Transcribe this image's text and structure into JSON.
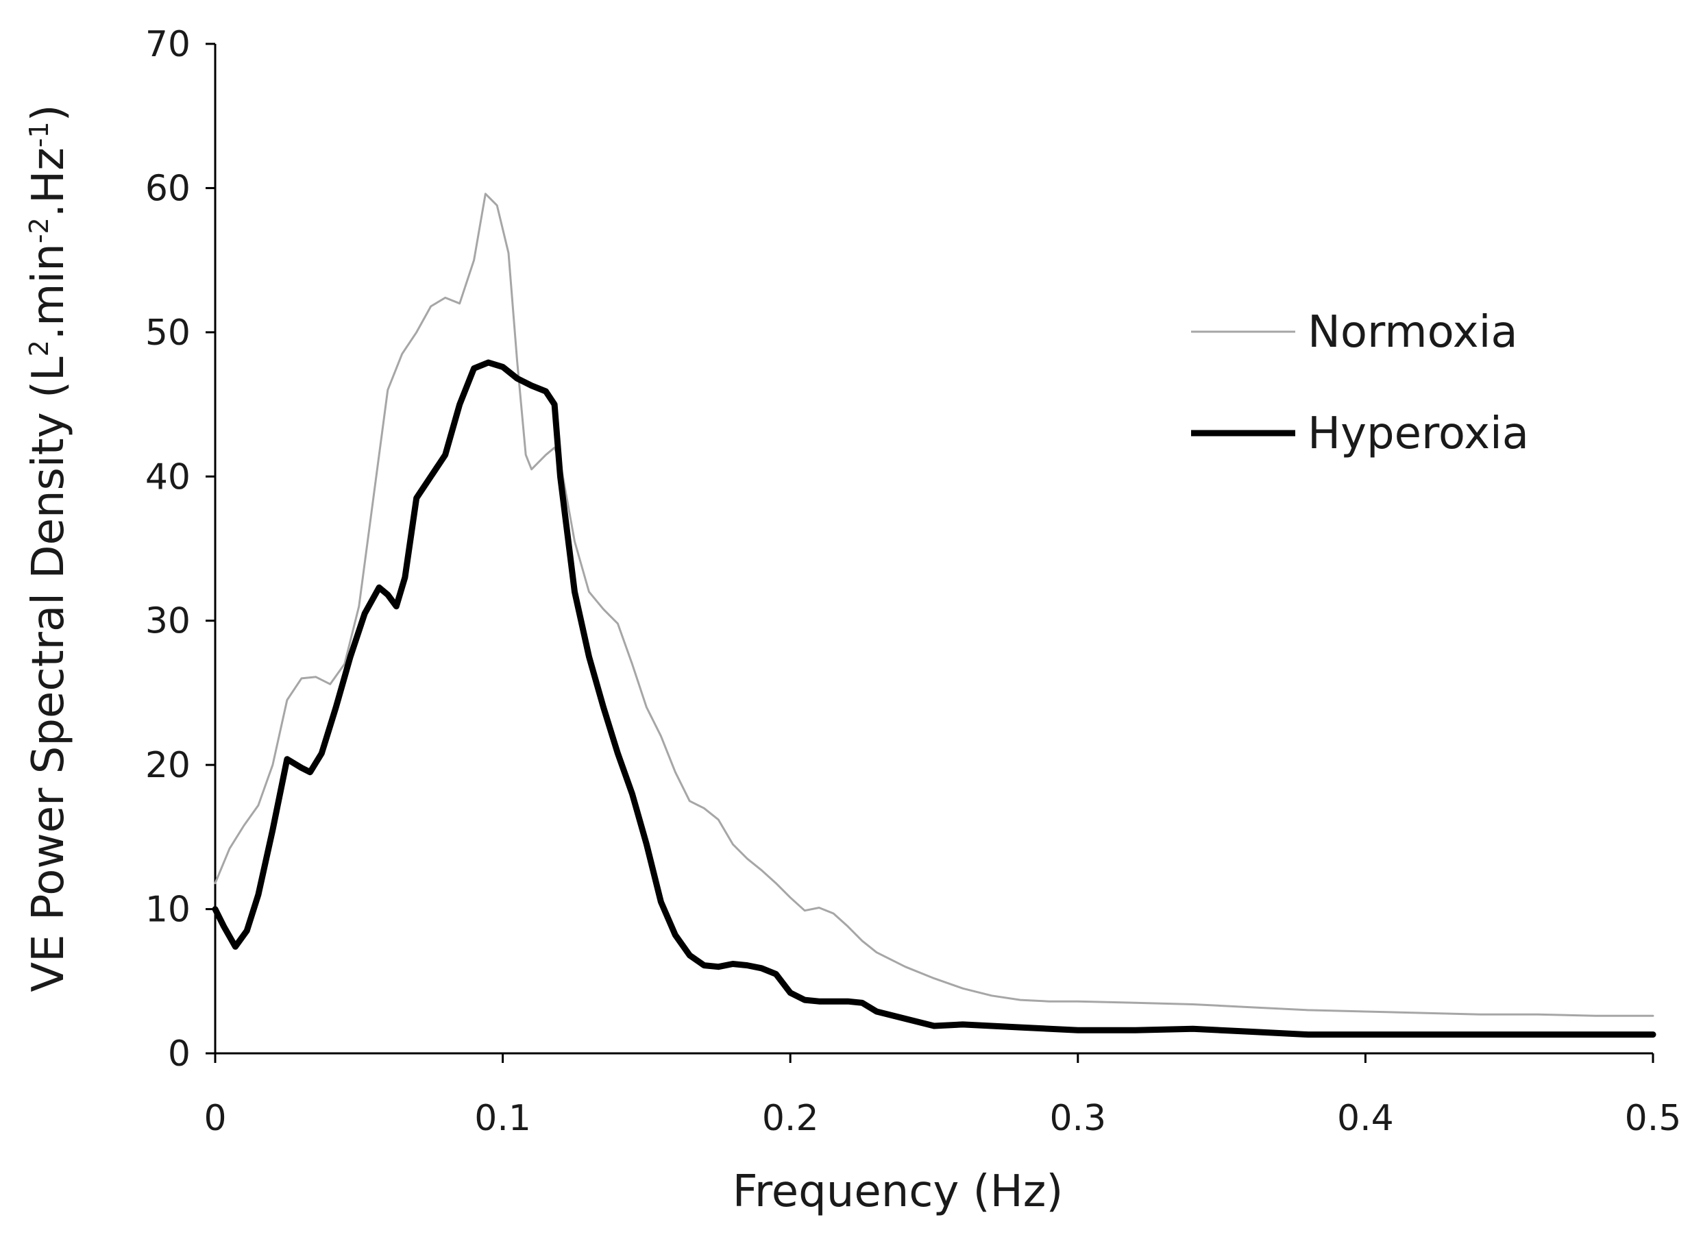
{
  "chart_data": {
    "type": "line",
    "xlabel": "Frequency (Hz)",
    "ylabel": {
      "text": "VE Power Spectral Density  (L",
      "sup1": "2",
      "mid1": ".min",
      "sup2": "-2",
      "mid2": ".Hz",
      "sup3": "-1",
      "end": ")"
    },
    "xlim": [
      0,
      0.5
    ],
    "ylim": [
      0,
      70
    ],
    "x_ticks": [
      0,
      0.1,
      0.2,
      0.3,
      0.4,
      0.5
    ],
    "x_tick_labels": [
      "0",
      "0.1",
      "0.2",
      "0.3",
      "0.4",
      "0.5"
    ],
    "y_ticks": [
      0,
      10,
      20,
      30,
      40,
      50,
      60,
      70
    ],
    "y_tick_labels": [
      "0",
      "10",
      "20",
      "30",
      "40",
      "50",
      "60",
      "70"
    ],
    "grid": false,
    "legend_position": "top-right",
    "series": [
      {
        "name": "Normoxia",
        "color": "#a6a6a6",
        "points": [
          [
            0,
            11.8
          ],
          [
            0.005,
            14.2
          ],
          [
            0.01,
            15.8
          ],
          [
            0.015,
            17.2
          ],
          [
            0.02,
            20.0
          ],
          [
            0.025,
            24.5
          ],
          [
            0.03,
            26.0
          ],
          [
            0.035,
            26.1
          ],
          [
            0.04,
            25.6
          ],
          [
            0.045,
            27.0
          ],
          [
            0.05,
            31.0
          ],
          [
            0.055,
            38.5
          ],
          [
            0.06,
            46.0
          ],
          [
            0.065,
            48.5
          ],
          [
            0.07,
            50.0
          ],
          [
            0.075,
            51.8
          ],
          [
            0.08,
            52.4
          ],
          [
            0.085,
            52.0
          ],
          [
            0.09,
            55.0
          ],
          [
            0.094,
            59.6
          ],
          [
            0.098,
            58.8
          ],
          [
            0.102,
            55.5
          ],
          [
            0.105,
            48.0
          ],
          [
            0.108,
            41.5
          ],
          [
            0.11,
            40.5
          ],
          [
            0.115,
            41.5
          ],
          [
            0.118,
            42.0
          ],
          [
            0.12,
            41.0
          ],
          [
            0.125,
            35.5
          ],
          [
            0.13,
            32.0
          ],
          [
            0.135,
            30.8
          ],
          [
            0.14,
            29.8
          ],
          [
            0.145,
            27.0
          ],
          [
            0.15,
            24.0
          ],
          [
            0.155,
            22.0
          ],
          [
            0.16,
            19.5
          ],
          [
            0.165,
            17.5
          ],
          [
            0.17,
            17.0
          ],
          [
            0.175,
            16.2
          ],
          [
            0.18,
            14.5
          ],
          [
            0.185,
            13.5
          ],
          [
            0.19,
            12.7
          ],
          [
            0.195,
            11.8
          ],
          [
            0.2,
            10.8
          ],
          [
            0.205,
            9.9
          ],
          [
            0.21,
            10.1
          ],
          [
            0.215,
            9.7
          ],
          [
            0.22,
            8.8
          ],
          [
            0.225,
            7.8
          ],
          [
            0.23,
            7.0
          ],
          [
            0.24,
            6.0
          ],
          [
            0.25,
            5.2
          ],
          [
            0.26,
            4.5
          ],
          [
            0.27,
            4.0
          ],
          [
            0.28,
            3.7
          ],
          [
            0.29,
            3.6
          ],
          [
            0.3,
            3.6
          ],
          [
            0.32,
            3.5
          ],
          [
            0.34,
            3.4
          ],
          [
            0.36,
            3.2
          ],
          [
            0.38,
            3.0
          ],
          [
            0.4,
            2.9
          ],
          [
            0.42,
            2.8
          ],
          [
            0.44,
            2.7
          ],
          [
            0.46,
            2.7
          ],
          [
            0.48,
            2.6
          ],
          [
            0.5,
            2.6
          ]
        ]
      },
      {
        "name": "Hyperoxia",
        "color": "#000000",
        "points": [
          [
            0,
            10.0
          ],
          [
            0.003,
            8.8
          ],
          [
            0.007,
            7.4
          ],
          [
            0.011,
            8.5
          ],
          [
            0.015,
            11.0
          ],
          [
            0.02,
            15.5
          ],
          [
            0.025,
            20.4
          ],
          [
            0.03,
            19.8
          ],
          [
            0.033,
            19.5
          ],
          [
            0.037,
            20.8
          ],
          [
            0.042,
            24.0
          ],
          [
            0.047,
            27.5
          ],
          [
            0.052,
            30.5
          ],
          [
            0.057,
            32.3
          ],
          [
            0.06,
            31.8
          ],
          [
            0.063,
            31.0
          ],
          [
            0.066,
            33.0
          ],
          [
            0.07,
            38.5
          ],
          [
            0.075,
            40.0
          ],
          [
            0.08,
            41.5
          ],
          [
            0.085,
            45.0
          ],
          [
            0.09,
            47.5
          ],
          [
            0.095,
            47.9
          ],
          [
            0.1,
            47.6
          ],
          [
            0.105,
            46.8
          ],
          [
            0.11,
            46.3
          ],
          [
            0.115,
            45.9
          ],
          [
            0.118,
            45.0
          ],
          [
            0.12,
            40.0
          ],
          [
            0.125,
            32.0
          ],
          [
            0.13,
            27.5
          ],
          [
            0.135,
            24.0
          ],
          [
            0.14,
            20.8
          ],
          [
            0.145,
            18.0
          ],
          [
            0.15,
            14.5
          ],
          [
            0.155,
            10.5
          ],
          [
            0.16,
            8.2
          ],
          [
            0.165,
            6.8
          ],
          [
            0.17,
            6.1
          ],
          [
            0.175,
            6.0
          ],
          [
            0.18,
            6.2
          ],
          [
            0.185,
            6.1
          ],
          [
            0.19,
            5.9
          ],
          [
            0.195,
            5.5
          ],
          [
            0.2,
            4.2
          ],
          [
            0.205,
            3.7
          ],
          [
            0.21,
            3.6
          ],
          [
            0.22,
            3.6
          ],
          [
            0.225,
            3.5
          ],
          [
            0.23,
            2.9
          ],
          [
            0.24,
            2.4
          ],
          [
            0.25,
            1.9
          ],
          [
            0.26,
            2.0
          ],
          [
            0.27,
            1.9
          ],
          [
            0.28,
            1.8
          ],
          [
            0.3,
            1.6
          ],
          [
            0.32,
            1.6
          ],
          [
            0.34,
            1.7
          ],
          [
            0.36,
            1.5
          ],
          [
            0.38,
            1.3
          ],
          [
            0.4,
            1.3
          ],
          [
            0.42,
            1.3
          ],
          [
            0.44,
            1.3
          ],
          [
            0.46,
            1.3
          ],
          [
            0.48,
            1.3
          ],
          [
            0.5,
            1.3
          ]
        ]
      }
    ]
  }
}
